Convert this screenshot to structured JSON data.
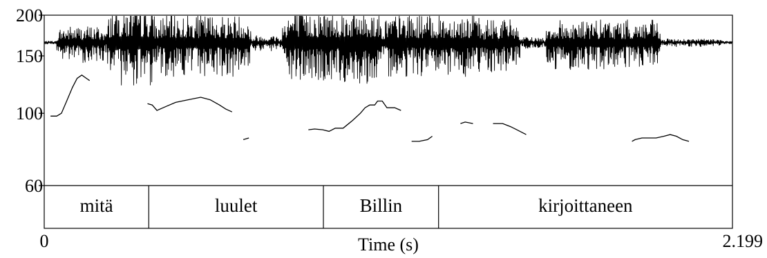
{
  "chart_data": {
    "type": "line",
    "title": "",
    "xlabel": "Time (s)",
    "ylabel": "",
    "x_range": [
      0,
      2.199
    ],
    "x_tick_labels": [
      "0",
      "2.199"
    ],
    "ylim": [
      60,
      200
    ],
    "y_tick_labels": [
      "200",
      "150",
      "100",
      "60"
    ],
    "y_scale": "log",
    "grid": false,
    "legend": "none",
    "waveform": {
      "description_free": true,
      "baseline_hz": 165,
      "segments": [
        {
          "t0": 0.04,
          "t1": 0.2,
          "amp": 0.45
        },
        {
          "t0": 0.2,
          "t1": 0.36,
          "amp": 0.95
        },
        {
          "t0": 0.36,
          "t1": 0.66,
          "amp": 0.75
        },
        {
          "t0": 0.66,
          "t1": 0.76,
          "amp": 0.2
        },
        {
          "t0": 0.76,
          "t1": 1.08,
          "amp": 0.9
        },
        {
          "t0": 1.08,
          "t1": 1.4,
          "amp": 0.75
        },
        {
          "t0": 1.4,
          "t1": 1.52,
          "amp": 0.65
        },
        {
          "t0": 1.52,
          "t1": 1.6,
          "amp": 0.15
        },
        {
          "t0": 1.6,
          "t1": 1.97,
          "amp": 0.6
        },
        {
          "t0": 1.97,
          "t1": 2.17,
          "amp": 0.1
        }
      ]
    },
    "series": [
      {
        "pitch_segments": [
          [
            [
              0.02,
              98
            ],
            [
              0.04,
              98
            ],
            [
              0.055,
              100
            ],
            [
              0.07,
              108
            ],
            [
              0.09,
              120
            ],
            [
              0.105,
              128
            ],
            [
              0.12,
              131
            ],
            [
              0.135,
              128
            ],
            [
              0.145,
              126
            ]
          ],
          [
            [
              0.33,
              107
            ],
            [
              0.345,
              106
            ],
            [
              0.36,
              102
            ],
            [
              0.39,
              105
            ],
            [
              0.42,
              108
            ],
            [
              0.46,
              110
            ],
            [
              0.5,
              112
            ],
            [
              0.53,
              110
            ],
            [
              0.56,
              106
            ],
            [
              0.58,
              103
            ],
            [
              0.6,
              101
            ]
          ],
          [
            [
              0.636,
              83
            ],
            [
              0.654,
              84
            ]
          ],
          [
            [
              0.844,
              89
            ],
            [
              0.864,
              89.5
            ],
            [
              0.89,
              89
            ],
            [
              0.91,
              88
            ],
            [
              0.93,
              90
            ],
            [
              0.955,
              90
            ],
            [
              0.985,
              95
            ],
            [
              1.01,
              100
            ],
            [
              1.025,
              104
            ],
            [
              1.04,
              106
            ],
            [
              1.056,
              106
            ],
            [
              1.065,
              109
            ],
            [
              1.08,
              109
            ],
            [
              1.095,
              104
            ],
            [
              1.12,
              104
            ],
            [
              1.14,
              102
            ]
          ],
          [
            [
              1.174,
              82
            ],
            [
              1.198,
              82
            ],
            [
              1.225,
              83
            ],
            [
              1.24,
              85
            ]
          ],
          [
            [
              1.33,
              93
            ],
            [
              1.345,
              94
            ],
            [
              1.37,
              93
            ]
          ],
          [
            [
              1.434,
              93
            ],
            [
              1.45,
              93
            ],
            [
              1.465,
              93
            ],
            [
              1.49,
              91
            ],
            [
              1.51,
              89
            ],
            [
              1.54,
              86
            ]
          ],
          [
            [
              1.878,
              82
            ],
            [
              1.888,
              83
            ],
            [
              1.91,
              84
            ],
            [
              1.93,
              84
            ],
            [
              1.955,
              84
            ],
            [
              1.98,
              85
            ],
            [
              2.0,
              86
            ],
            [
              2.02,
              85
            ],
            [
              2.04,
              83
            ],
            [
              2.06,
              82
            ]
          ]
        ]
      }
    ],
    "annotations": {
      "words": [
        {
          "label": "mitä",
          "start": 0.0,
          "end": 0.334
        },
        {
          "label": "luulet",
          "start": 0.334,
          "end": 0.892
        },
        {
          "label": "Billin",
          "start": 0.892,
          "end": 1.26
        },
        {
          "label": "kirjoittaneen",
          "start": 1.26,
          "end": 2.199
        }
      ]
    }
  }
}
